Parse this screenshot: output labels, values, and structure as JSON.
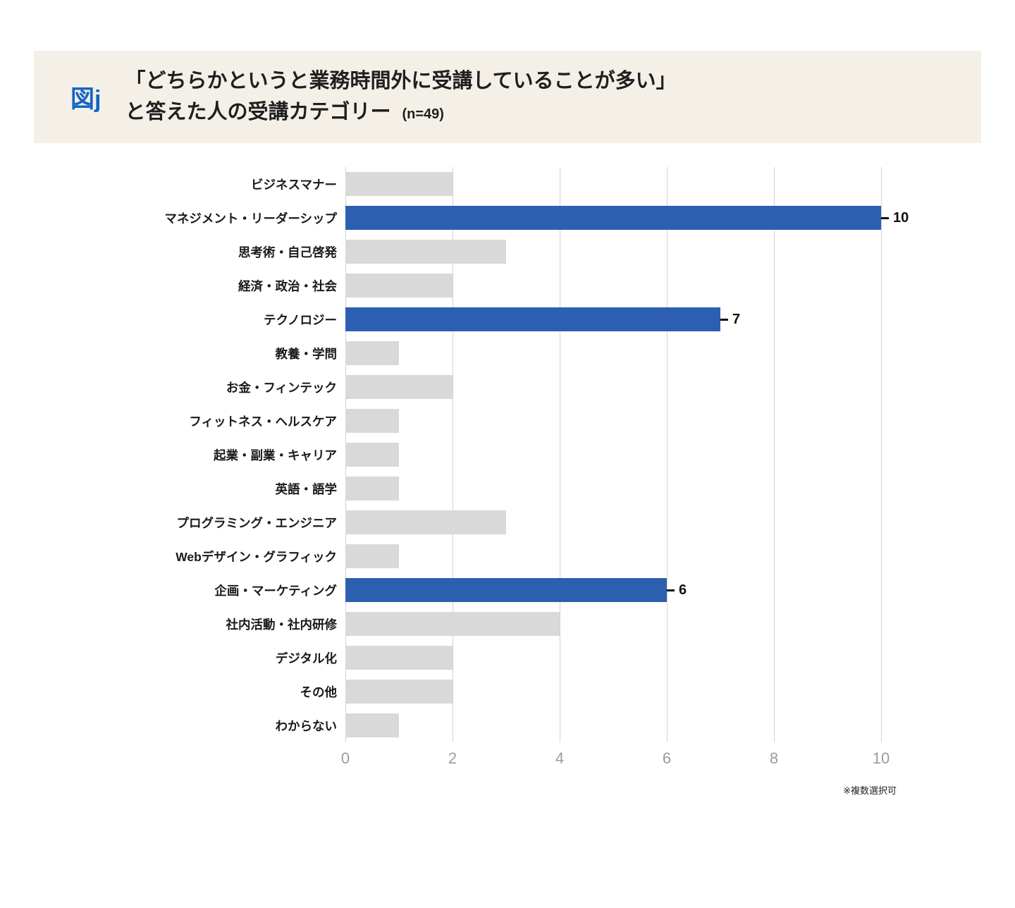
{
  "header": {
    "figure_label": "図j",
    "title_line1": "「どちらかというと業務時間外に受講していることが多い」",
    "title_line2": "と答えた人の受講カテゴリー",
    "sample_size": "(n=49)"
  },
  "footnote": "※複数選択可",
  "colors": {
    "header_band": "#f4f0e8",
    "figure_label_blue": "#1464c4",
    "bar_highlight": "#2d5fb0",
    "bar_default": "#d9d9d9",
    "gridline": "#d2d2d2",
    "tick_label": "#9b9b9b"
  },
  "chart_data": {
    "type": "bar",
    "orientation": "horizontal",
    "title": "「どちらかというと業務時間外に受講していることが多い」と答えた人の受講カテゴリー (n=49)",
    "xlabel": "",
    "ylabel": "",
    "categories": [
      "ビジネスマナー",
      "マネジメント・リーダーシップ",
      "思考術・自己啓発",
      "経済・政治・社会",
      "テクノロジー",
      "教養・学問",
      "お金・フィンテック",
      "フィットネス・ヘルスケア",
      "起業・副業・キャリア",
      "英語・語学",
      "プログラミング・エンジニア",
      "Webデザイン・グラフィック",
      "企画・マーケティング",
      "社内活動・社内研修",
      "デジタル化",
      "その他",
      "わからない"
    ],
    "values": [
      2,
      10,
      3,
      2,
      7,
      1,
      2,
      1,
      1,
      1,
      3,
      1,
      6,
      4,
      2,
      2,
      1
    ],
    "highlighted_indices": [
      1,
      4,
      12
    ],
    "labeled_values": [
      null,
      10,
      null,
      null,
      7,
      null,
      null,
      null,
      null,
      null,
      null,
      null,
      6,
      null,
      null,
      null,
      null
    ],
    "xlim": [
      0,
      10
    ],
    "xticks": [
      0,
      2,
      4,
      6,
      8,
      10
    ],
    "grid": true,
    "legend_position": "none",
    "bar_color_default": "#d9d9d9",
    "bar_color_highlight": "#2d5fb0"
  }
}
